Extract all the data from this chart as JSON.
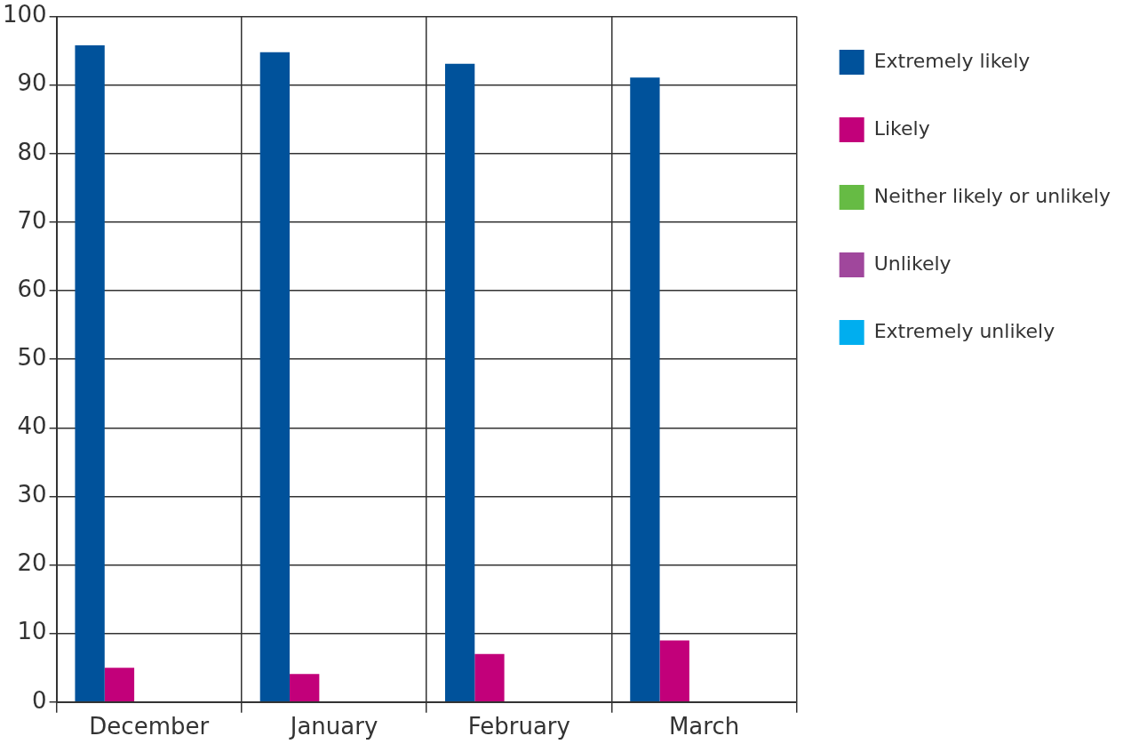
{
  "chart_data": {
    "type": "bar",
    "categories": [
      "December",
      "January",
      "February",
      "March"
    ],
    "series": [
      {
        "name": "Extremely likely",
        "color": "#00529b",
        "values": [
          95.8,
          94.8,
          93.1,
          91.1
        ]
      },
      {
        "name": "Likely",
        "color": "#c2007a",
        "values": [
          5,
          4.1,
          7,
          9
        ]
      },
      {
        "name": "Neither likely or unlikely",
        "color": "#66bb44",
        "values": [
          0,
          0,
          0,
          0
        ]
      },
      {
        "name": "Unlikely",
        "color": "#a0479c",
        "values": [
          0,
          0,
          0,
          0
        ]
      },
      {
        "name": "Extremely unlikely",
        "color": "#00aeef",
        "values": [
          0,
          0,
          0,
          0
        ]
      }
    ],
    "ylim": [
      0,
      100
    ],
    "yticks": [
      0,
      10,
      20,
      30,
      40,
      50,
      60,
      70,
      80,
      90,
      100
    ],
    "grid": true,
    "legend": "right"
  }
}
